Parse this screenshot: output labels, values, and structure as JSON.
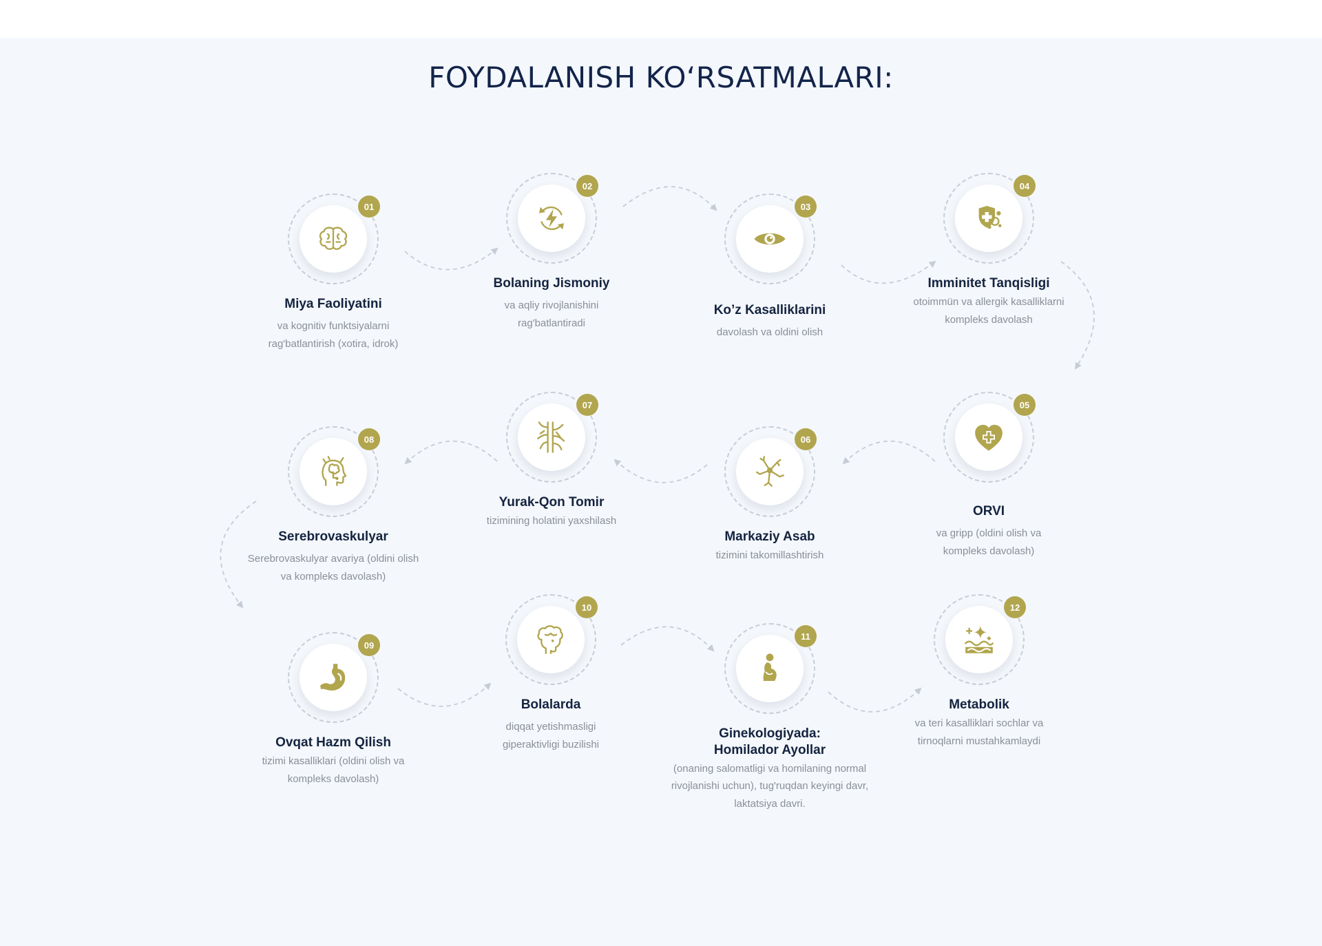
{
  "page": {
    "title": "FOYDALANISH KO‘RSATMALARI:",
    "accent_color": "#b1a54e",
    "background_color": "#f4f7fb"
  },
  "steps": [
    {
      "number": "01",
      "icon": "brain-icon",
      "title": "Miya Faoliyatini",
      "description": "va kognitiv funktsiyalarni rag'batlantirish (xotira, idrok)"
    },
    {
      "number": "02",
      "icon": "refresh-lightning-icon",
      "title": "Bolaning Jismoniy",
      "description": "va aqliy rivojlanishini rag'batlantiradi"
    },
    {
      "number": "03",
      "icon": "eye-icon",
      "title": "Ko’z Kasalliklarini",
      "description": "davolash va oldini olish"
    },
    {
      "number": "04",
      "icon": "shield-virus-icon",
      "title": "Imminitet Tanqisligi",
      "description": "otoimmün va allergik kasalliklarni kompleks davolash"
    },
    {
      "number": "05",
      "icon": "heart-plus-icon",
      "title": "ORVI",
      "description": "va gripp (oldini olish va kompleks davolash)"
    },
    {
      "number": "06",
      "icon": "neuron-icon",
      "title": "Markaziy Asab",
      "description": "tizimini takomillashtirish"
    },
    {
      "number": "07",
      "icon": "blood-vessels-icon",
      "title": "Yurak-Qon Tomir",
      "description": "tizimining holatini yaxshilash"
    },
    {
      "number": "08",
      "icon": "head-brain-icon",
      "title": "Serebrovaskulyar",
      "description": "Serebrovaskulyar avariya (oldini olish va kompleks davolash)"
    },
    {
      "number": "09",
      "icon": "stomach-icon",
      "title": "Ovqat Hazm Qilish",
      "description": "tizimi kasalliklari (oldini olish va kompleks davolash)"
    },
    {
      "number": "10",
      "icon": "child-head-icon",
      "title": "Bolalarda",
      "description": "diqqat yetishmasligi giperaktivligi buzilishi"
    },
    {
      "number": "11",
      "icon": "pregnant-woman-icon",
      "title": "Ginekologiyada: Homilador Ayollar",
      "description": "(onaning salomatligi va homilaning normal rivojlanishi uchun), tug'ruqdan keyingi davr, laktatsiya davri."
    },
    {
      "number": "12",
      "icon": "skin-sparkle-icon",
      "title": "Metabolik",
      "description": "va teri kasalliklari sochlar va tirnoqlarni mustahkamlaydi"
    }
  ]
}
